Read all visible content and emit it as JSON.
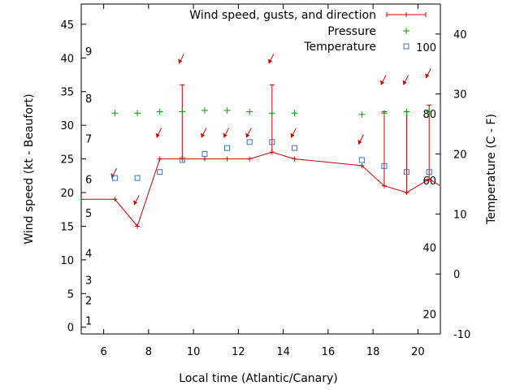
{
  "chart_data": {
    "type": "line",
    "xlabel": "Local time (Atlantic/Canary)",
    "ylabel": "Wind speed (kt - Beaufort)",
    "y2label": "Temperature (C - F)",
    "xlim": [
      5,
      21
    ],
    "ylim": [
      -1,
      48
    ],
    "y2lim": [
      -10,
      45
    ],
    "grid": false,
    "legend_position": "top-right",
    "x_ticks": [
      6,
      8,
      10,
      12,
      14,
      16,
      18,
      20
    ],
    "y_ticks": [
      0,
      5,
      10,
      15,
      20,
      25,
      30,
      35,
      40,
      45
    ],
    "y2_ticks": [
      -10,
      0,
      10,
      20,
      30,
      40
    ],
    "beaufort_labels": [
      {
        "text": "1",
        "y": 1
      },
      {
        "text": "2",
        "y": 4
      },
      {
        "text": "3",
        "y": 7
      },
      {
        "text": "4",
        "y": 11
      },
      {
        "text": "5",
        "y": 17
      },
      {
        "text": "6",
        "y": 22
      },
      {
        "text": "7",
        "y": 28
      },
      {
        "text": "8",
        "y": 34
      },
      {
        "text": "9",
        "y": 41
      }
    ],
    "fahrenheit_labels": [
      {
        "text": "20",
        "t2": -6.7
      },
      {
        "text": "40",
        "t2": 4.4
      },
      {
        "text": "60",
        "t2": 15.6
      },
      {
        "text": "80",
        "t2": 26.7
      },
      {
        "text": "100",
        "t2": 37.8
      }
    ],
    "series": [
      {
        "name": "Wind speed, gusts, and direction",
        "color": "#cc0000",
        "line_x": [
          5,
          6.5,
          7.5,
          8.5,
          9.5,
          10.5,
          11.5,
          12.5,
          13.5,
          14.5,
          17.5,
          18.5,
          19.5,
          20.5,
          21
        ],
        "line_y": [
          19,
          19,
          15,
          25,
          25,
          25,
          25,
          25,
          26,
          25,
          24,
          21,
          20,
          22,
          21
        ],
        "points": [
          {
            "x": 6.5,
            "speed": 19,
            "gust": null,
            "arrow_deg": 200
          },
          {
            "x": 7.5,
            "speed": 15,
            "gust": null,
            "arrow_deg": 200
          },
          {
            "x": 8.5,
            "speed": 25,
            "gust": null,
            "arrow_deg": 200
          },
          {
            "x": 9.5,
            "speed": 25,
            "gust": 36,
            "arrow_deg": 200
          },
          {
            "x": 10.5,
            "speed": 25,
            "gust": null,
            "arrow_deg": 200
          },
          {
            "x": 11.5,
            "speed": 25,
            "gust": null,
            "arrow_deg": 200
          },
          {
            "x": 12.5,
            "speed": 25,
            "gust": null,
            "arrow_deg": 200
          },
          {
            "x": 13.5,
            "speed": 26,
            "gust": 36,
            "arrow_deg": 200
          },
          {
            "x": 14.5,
            "speed": 25,
            "gust": null,
            "arrow_deg": 200
          },
          {
            "x": 17.5,
            "speed": 24,
            "gust": null,
            "arrow_deg": 200
          },
          {
            "x": 18.5,
            "speed": 21,
            "gust": 32,
            "arrow_deg": 200
          },
          {
            "x": 19.5,
            "speed": 20,
            "gust": 32,
            "arrow_deg": 200
          },
          {
            "x": 20.5,
            "speed": 22,
            "gust": 33,
            "arrow_deg": 200
          }
        ],
        "arrows_at_top": [
          18.5,
          19.5,
          20.5
        ]
      },
      {
        "name": "Pressure",
        "color": "#00a000",
        "marker": "plus",
        "x": [
          6.5,
          7.5,
          8.5,
          9.5,
          10.5,
          11.5,
          12.5,
          13.5,
          14.5,
          17.5,
          18.5,
          19.5,
          20.5
        ],
        "y": [
          31.8,
          31.8,
          32.0,
          32.0,
          32.2,
          32.2,
          32.0,
          31.8,
          31.8,
          31.6,
          31.8,
          32.0,
          32.0
        ]
      },
      {
        "name": "Temperature",
        "color": "#3a72c4",
        "marker": "square",
        "x": [
          6.5,
          7.5,
          8.5,
          9.5,
          10.5,
          11.5,
          12.5,
          13.5,
          14.5,
          17.5,
          18.5,
          19.5,
          20.5
        ],
        "y": [
          16,
          16,
          17,
          19,
          20,
          21,
          22,
          22,
          21,
          19,
          18,
          17,
          17
        ]
      }
    ]
  }
}
